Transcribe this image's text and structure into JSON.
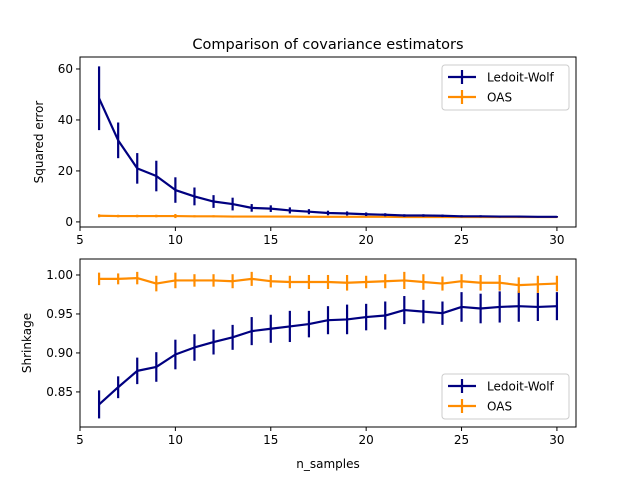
{
  "chart_data": [
    {
      "type": "line",
      "title": "Comparison of covariance estimators",
      "xlabel": "",
      "ylabel": "Squared error",
      "xlim": [
        5,
        31
      ],
      "ylim": [
        -2,
        64.7
      ],
      "xticks": [
        5,
        10,
        15,
        20,
        25,
        30
      ],
      "yticks": [
        0,
        20,
        40,
        60
      ],
      "legend": "top-right",
      "x": [
        6,
        7,
        8,
        9,
        10,
        11,
        12,
        13,
        14,
        15,
        16,
        17,
        18,
        19,
        20,
        21,
        22,
        23,
        24,
        25,
        26,
        27,
        28,
        29,
        30
      ],
      "series": [
        {
          "name": "Ledoit-Wolf",
          "color": "#000080",
          "values": [
            48.5,
            32,
            21,
            18,
            12.5,
            10,
            8,
            7,
            5.5,
            5.2,
            4.5,
            4,
            3.5,
            3.3,
            3,
            2.8,
            2.5,
            2.5,
            2.4,
            2.2,
            2.2,
            2.1,
            2.1,
            2.0,
            2.0
          ],
          "errors": [
            12.5,
            7,
            6,
            6,
            5,
            3.5,
            2.5,
            2.5,
            1.5,
            1.3,
            1.2,
            1,
            0.9,
            0.8,
            0.7,
            0.6,
            0.5,
            0.5,
            0.5,
            0.4,
            0.4,
            0.4,
            0.4,
            0.3,
            0.3
          ]
        },
        {
          "name": "OAS",
          "color": "#ff8c00",
          "values": [
            2.4,
            2.3,
            2.3,
            2.3,
            2.3,
            2.2,
            2.2,
            2.1,
            2.1,
            2.1,
            2.1,
            2.0,
            2.0,
            2.0,
            2.0,
            2.0,
            1.9,
            1.9,
            1.9,
            1.9,
            1.9,
            1.9,
            1.9,
            1.9,
            1.9
          ],
          "errors": [
            0.6,
            0.5,
            0.5,
            0.5,
            0.8,
            0.4,
            0.4,
            0.4,
            0.3,
            0.3,
            0.3,
            0.3,
            0.3,
            0.3,
            0.3,
            0.3,
            0.3,
            0.3,
            0.3,
            0.3,
            0.3,
            0.3,
            0.3,
            0.3,
            0.3
          ]
        }
      ]
    },
    {
      "type": "line",
      "title": "",
      "xlabel": "n_samples",
      "ylabel": "Shrinkage",
      "xlim": [
        5,
        31
      ],
      "ylim": [
        0.805,
        1.0205
      ],
      "xticks": [
        5,
        10,
        15,
        20,
        25,
        30
      ],
      "yticks": [
        0.85,
        0.9,
        0.95,
        1.0
      ],
      "legend": "bottom-right",
      "x": [
        6,
        7,
        8,
        9,
        10,
        11,
        12,
        13,
        14,
        15,
        16,
        17,
        18,
        19,
        20,
        21,
        22,
        23,
        24,
        25,
        26,
        27,
        28,
        29,
        30
      ],
      "series": [
        {
          "name": "Ledoit-Wolf",
          "color": "#000080",
          "values": [
            0.834,
            0.856,
            0.877,
            0.882,
            0.898,
            0.907,
            0.914,
            0.92,
            0.928,
            0.931,
            0.934,
            0.937,
            0.942,
            0.943,
            0.946,
            0.948,
            0.955,
            0.953,
            0.951,
            0.959,
            0.957,
            0.959,
            0.96,
            0.959,
            0.96
          ],
          "errors": [
            0.018,
            0.014,
            0.017,
            0.019,
            0.019,
            0.017,
            0.016,
            0.016,
            0.018,
            0.018,
            0.02,
            0.017,
            0.018,
            0.019,
            0.017,
            0.018,
            0.018,
            0.015,
            0.015,
            0.019,
            0.019,
            0.02,
            0.02,
            0.018,
            0.018
          ]
        },
        {
          "name": "OAS",
          "color": "#ff8c00",
          "values": [
            0.995,
            0.995,
            0.996,
            0.989,
            0.993,
            0.993,
            0.993,
            0.992,
            0.995,
            0.992,
            0.991,
            0.991,
            0.991,
            0.99,
            0.991,
            0.992,
            0.993,
            0.991,
            0.989,
            0.992,
            0.99,
            0.99,
            0.987,
            0.988,
            0.989
          ],
          "errors": [
            0.008,
            0.007,
            0.008,
            0.01,
            0.01,
            0.008,
            0.008,
            0.009,
            0.009,
            0.008,
            0.008,
            0.009,
            0.009,
            0.01,
            0.008,
            0.009,
            0.011,
            0.01,
            0.009,
            0.009,
            0.01,
            0.01,
            0.01,
            0.011,
            0.01
          ]
        }
      ]
    }
  ]
}
